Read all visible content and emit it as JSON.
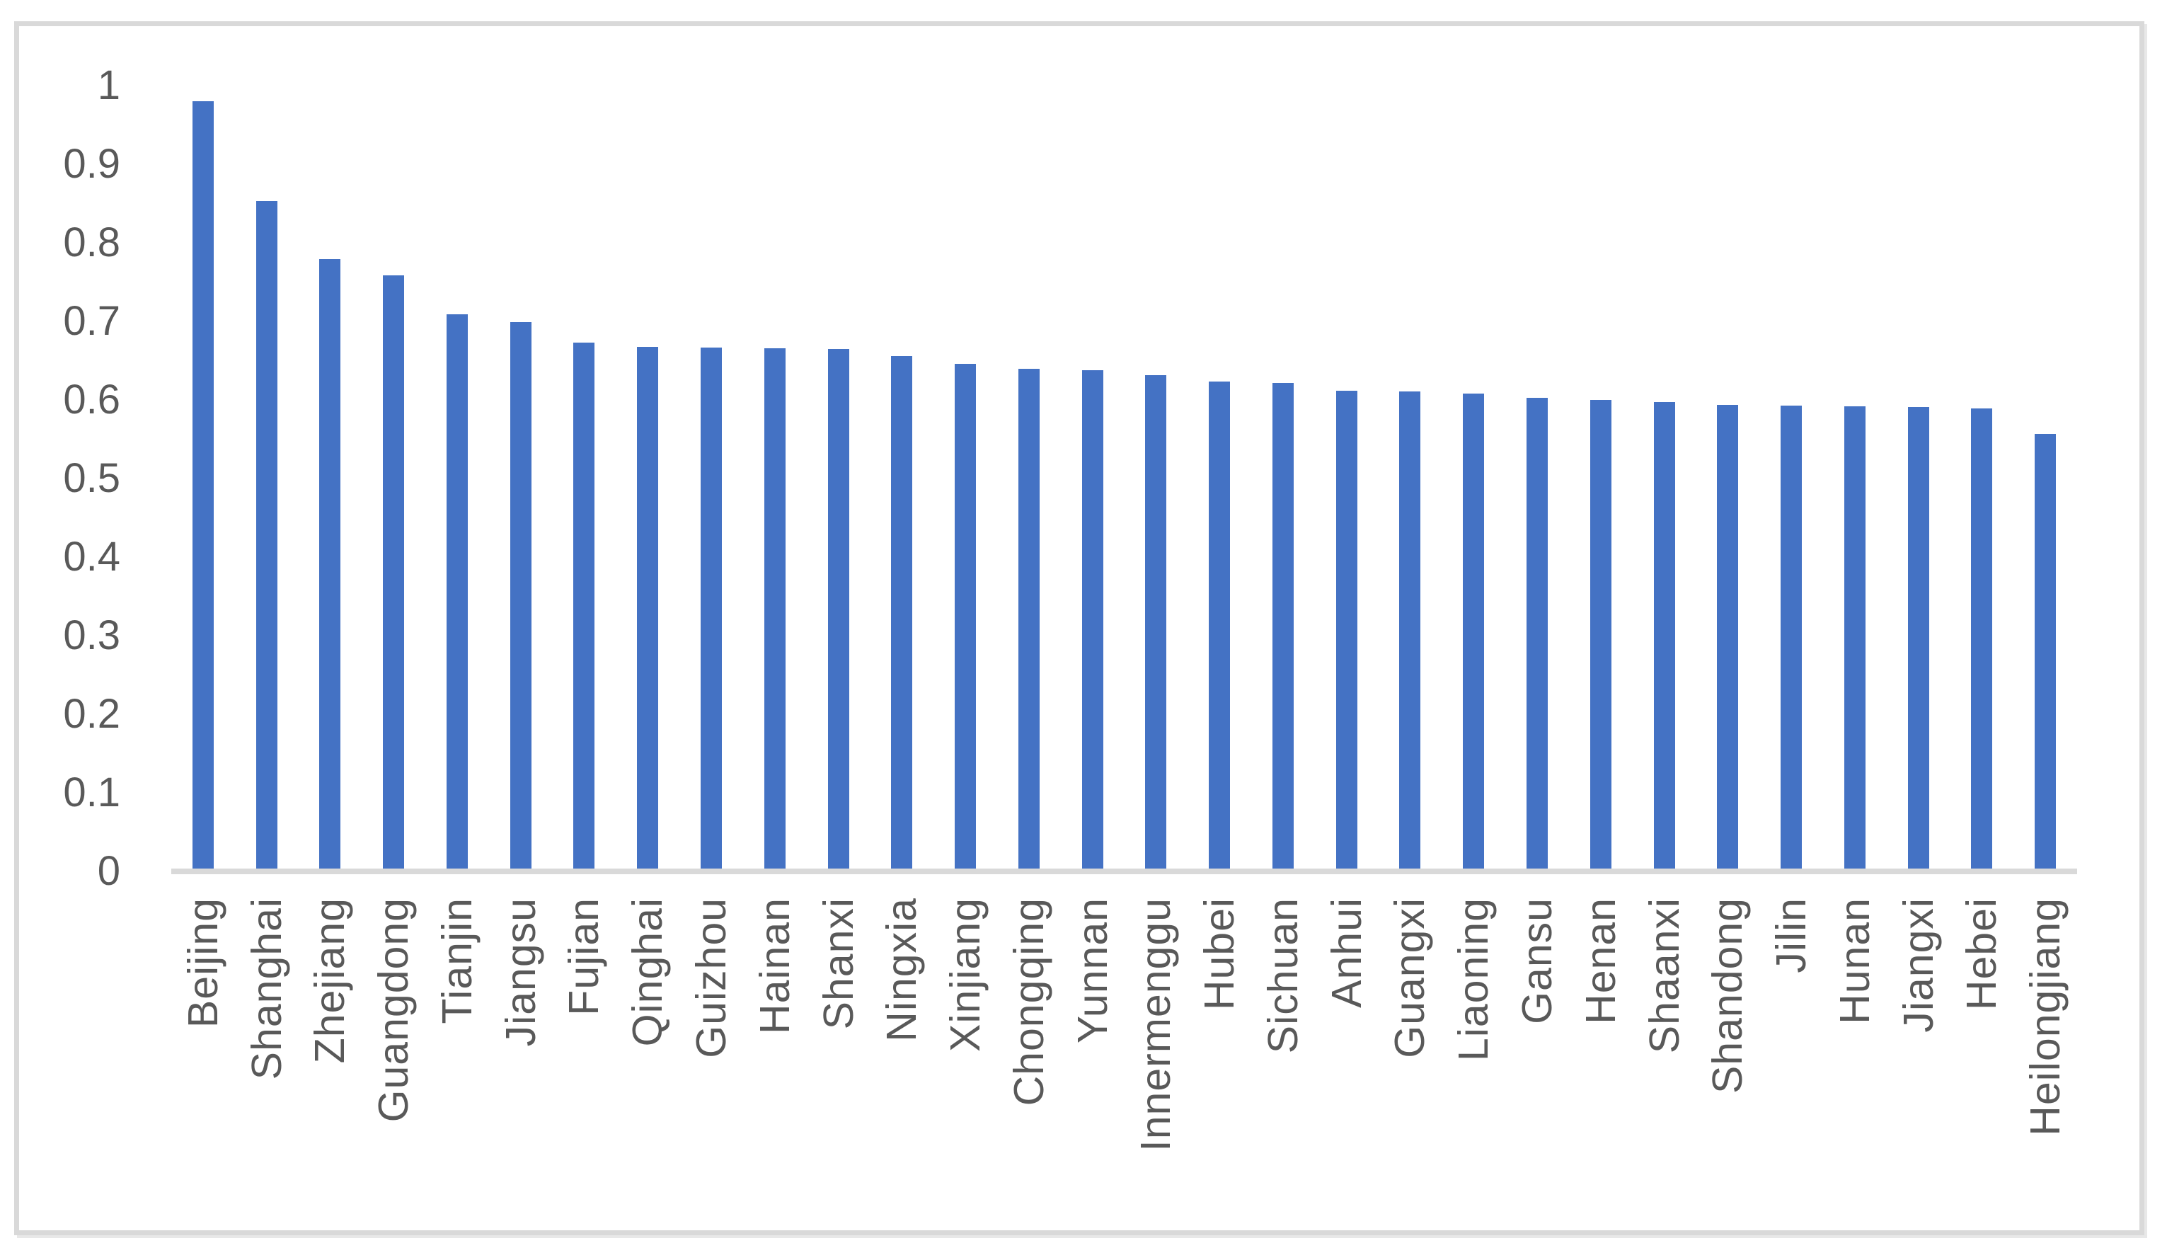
{
  "chart_data": {
    "type": "bar",
    "title": "",
    "xlabel": "",
    "ylabel": "",
    "ylim": [
      0,
      1
    ],
    "grid": false,
    "legend": false,
    "y_tick_labels": [
      "0",
      "0.1",
      "0.2",
      "0.3",
      "0.4",
      "0.5",
      "0.6",
      "0.7",
      "0.8",
      "0.9",
      "1"
    ],
    "categories": [
      "Beijing",
      "Shanghai",
      "Zhejiang",
      "Guangdong",
      "Tianjin",
      "Jiangsu",
      "Fujian",
      "Qinghai",
      "Guizhou",
      "Hainan",
      "Shanxi",
      "Ningxia",
      "Xinjiang",
      "Chongqing",
      "Yunnan",
      "Innermenggu",
      "Hubei",
      "Sichuan",
      "Anhui",
      "Guangxi",
      "Liaoning",
      "Gansu",
      "Henan",
      "Shaanxi",
      "Shandong",
      "Jilin",
      "Hunan",
      "Jiangxi",
      "Hebei",
      "Heilongjiang"
    ],
    "values": [
      0.981,
      0.853,
      0.779,
      0.758,
      0.709,
      0.699,
      0.672,
      0.667,
      0.666,
      0.665,
      0.664,
      0.655,
      0.645,
      0.639,
      0.637,
      0.631,
      0.623,
      0.621,
      0.611,
      0.61,
      0.607,
      0.602,
      0.599,
      0.596,
      0.593,
      0.592,
      0.591,
      0.59,
      0.588,
      0.556
    ]
  },
  "colors": {
    "bar": "#4472C4",
    "axis_line": "#D9D9D9",
    "frame_border": "#D9D9D9",
    "label_text": "#595959",
    "background": "#FFFFFF"
  }
}
